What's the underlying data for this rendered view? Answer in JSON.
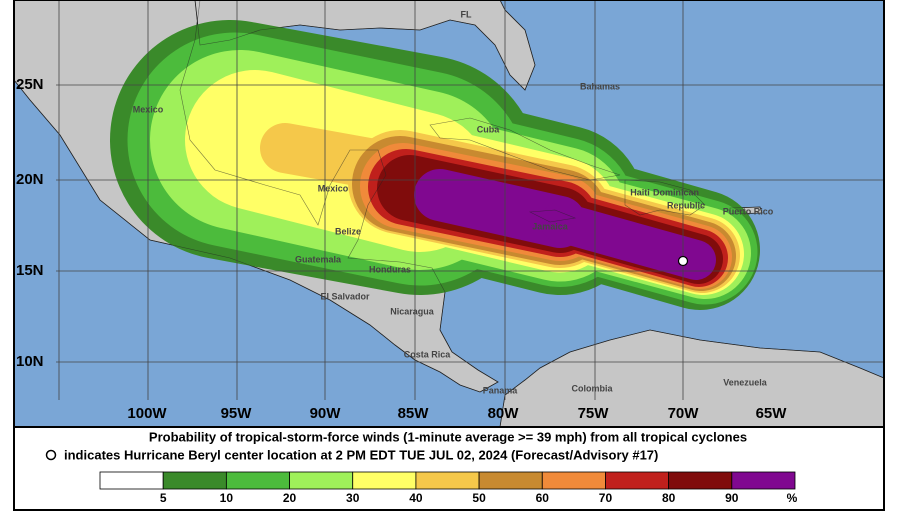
{
  "map": {
    "lat_labels": [
      "25N",
      "20N",
      "15N",
      "10N"
    ],
    "lon_labels": [
      "100W",
      "95W",
      "90W",
      "85W",
      "80W",
      "75W",
      "70W",
      "65W"
    ],
    "places": [
      "FL",
      "Bahamas",
      "Mexico",
      "Cuba",
      "Mexico",
      "Haiti",
      "Dominican",
      "Republic",
      "Puerto Rico",
      "Jamaica",
      "Belize",
      "Guatemala",
      "Honduras",
      "El Salvador",
      "Nicaragua",
      "Costa Rica",
      "Panama",
      "Colombia",
      "Venezuela"
    ]
  },
  "caption": {
    "line1": "Probability of tropical-storm-force winds (1-minute average >= 39 mph) from all tropical cyclones",
    "line2": "indicates Hurricane Beryl center location at 2 PM EDT TUE JUL 02, 2024 (Forecast/Advisory #17)"
  },
  "legend": {
    "values": [
      5,
      10,
      20,
      30,
      40,
      50,
      60,
      70,
      80,
      90
    ],
    "unit": "%",
    "colors": [
      "#ffffff",
      "#3a8a2a",
      "#4cbb3c",
      "#9ff05a",
      "#ffff66",
      "#f5c84a",
      "#c88a30",
      "#f08a3a",
      "#c0201c",
      "#800c0c",
      "#800890"
    ]
  }
}
